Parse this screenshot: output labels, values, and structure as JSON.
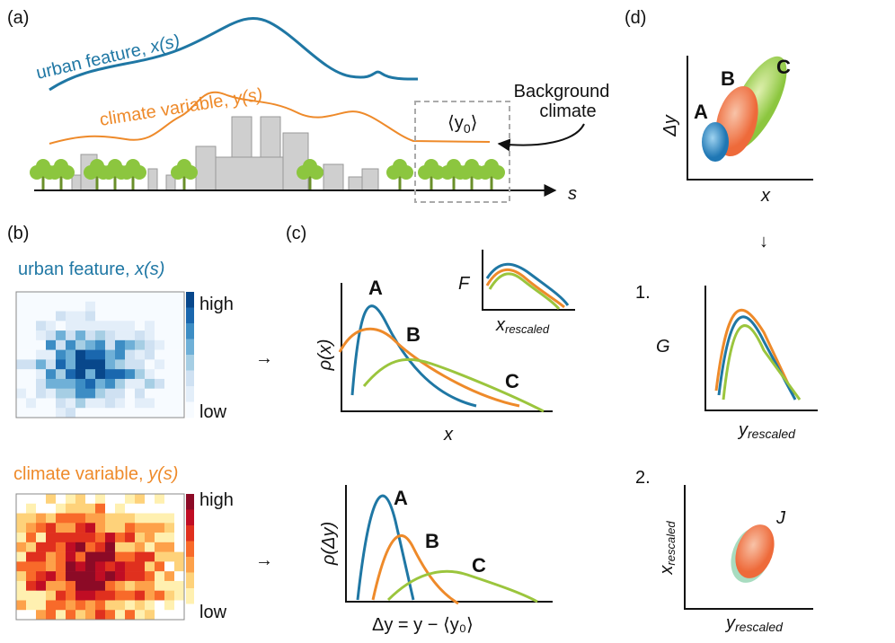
{
  "panel_a": {
    "label": "(a)",
    "urban_text": "urban feature, ",
    "urban_var": "x(s)",
    "climate_text": "climate variable, ",
    "climate_var": "y(s)",
    "background_mean": {
      "pre": "⟨y",
      "sub": "0",
      "post": "⟩"
    },
    "background_climate": [
      "Background",
      "climate"
    ],
    "axis": "s"
  },
  "panel_b": {
    "label": "(b)",
    "urban": {
      "text": "urban feature, ",
      "var": "x(s)",
      "high": "high",
      "low": "low"
    },
    "climate": {
      "text": "climate variable, ",
      "var": "y(s)",
      "high": "high",
      "low": "low"
    },
    "arrows": [
      "→",
      "→"
    ]
  },
  "panel_c": {
    "label": "(c)",
    "top": {
      "ylabel": "ρ(x)",
      "xlabel": "x",
      "curves": [
        "A",
        "B",
        "C"
      ],
      "inset": {
        "ylabel": "F",
        "xlabel": {
          "main": "x",
          "sub": "rescaled"
        }
      }
    },
    "bottom": {
      "ylabel": "ρ(Δy)",
      "xlabel": "Δy = y − ⟨y₀⟩",
      "curves": [
        "A",
        "B",
        "C"
      ]
    }
  },
  "panel_d": {
    "label": "(d)",
    "ylabel": "Δy",
    "xlabel": "x",
    "groups": [
      "A",
      "B",
      "C"
    ],
    "down_arrow": "↓",
    "step1": {
      "number": "1.",
      "ylabel": "G",
      "xlabel": {
        "main": "y",
        "sub": "rescaled"
      }
    },
    "step2": {
      "number": "2.",
      "ylabel": {
        "main": "x",
        "sub": "rescaled"
      },
      "xlabel": {
        "main": "y",
        "sub": "rescaled"
      },
      "label": "J"
    }
  }
}
